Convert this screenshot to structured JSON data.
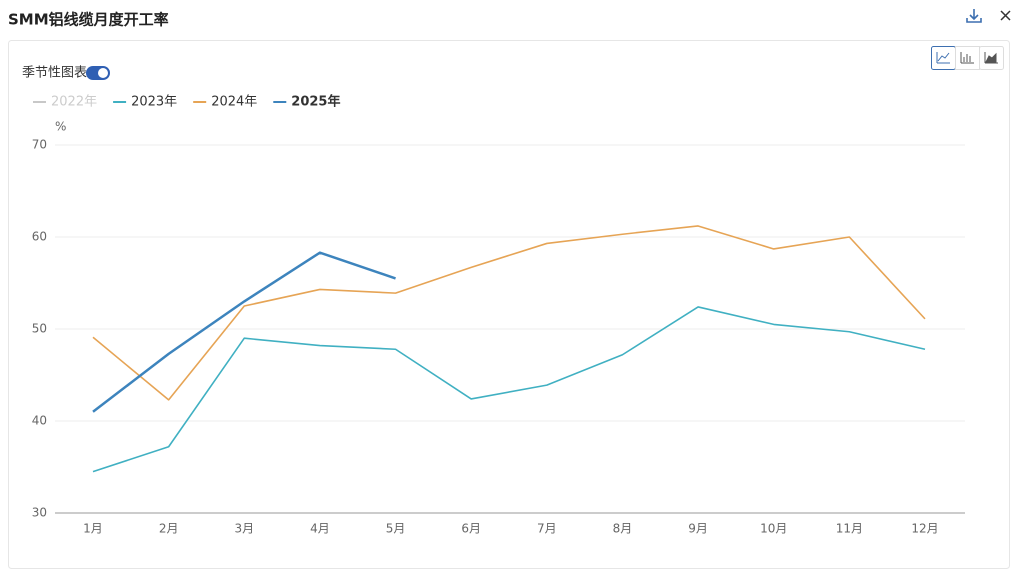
{
  "chart_data": {
    "type": "line",
    "title": "SMM铝线缆月度开工率",
    "toggle_label": "季节性图表",
    "y_unit": "%",
    "categories": [
      "1月",
      "2月",
      "3月",
      "4月",
      "5月",
      "6月",
      "7月",
      "8月",
      "9月",
      "10月",
      "11月",
      "12月"
    ],
    "series": [
      {
        "name": "2022年",
        "color": "#c8c8c8",
        "hidden": true,
        "values": [
          null,
          null,
          null,
          null,
          null,
          null,
          null,
          null,
          null,
          null,
          null,
          null
        ]
      },
      {
        "name": "2023年",
        "color": "#40b0c2",
        "values": [
          34.5,
          37.2,
          49.0,
          48.2,
          47.8,
          42.4,
          43.9,
          47.2,
          52.4,
          50.5,
          49.7,
          47.8
        ]
      },
      {
        "name": "2024年",
        "color": "#e6a455",
        "values": [
          49.1,
          42.3,
          52.5,
          54.3,
          53.9,
          56.7,
          59.3,
          60.3,
          61.2,
          58.7,
          60.0,
          51.1
        ]
      },
      {
        "name": "2025年",
        "color": "#3d84bd",
        "values": [
          41.0,
          47.3,
          53.0,
          58.3,
          55.5,
          null,
          null,
          null,
          null,
          null,
          null,
          null
        ]
      }
    ],
    "ylim": [
      30,
      70
    ],
    "yticks": [
      30,
      40,
      50,
      60,
      70
    ],
    "grid": true
  }
}
